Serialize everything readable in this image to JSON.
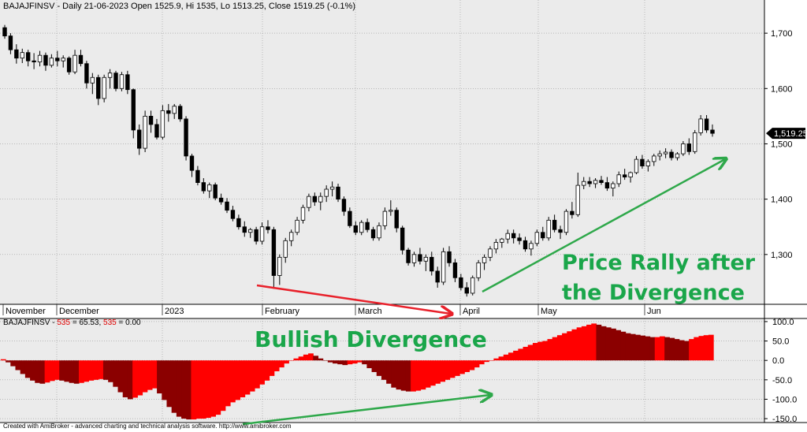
{
  "price_header": "BAJAJFINSV - Daily 21-06-2023 Open 1525.9, Hi 1535, Lo 1513.25, Close 1519.25 (-0.1%)",
  "indicator_header": {
    "prefix": "BAJAJFINSV - ",
    "name1": "535",
    "mid": " = 65.53, ",
    "name2": "535",
    "suffix": " = 0.00"
  },
  "footer": "Created with AmiBroker - advanced charting and technical analysis software. http://www.amibroker.com",
  "annotations": {
    "price_rally_line1": "Price Rally after",
    "price_rally_line2": "the Divergence",
    "bullish_divergence": "Bullish Divergence"
  },
  "colors": {
    "background": "#ebebeb",
    "bull_candle": "#ffffff",
    "bear_candle": "#000000",
    "osc_dark": "#8b0000",
    "osc_bright": "#ff0000",
    "arrow_red": "#e8202a",
    "arrow_green": "#2ea84a",
    "last_price_badge": "#000000"
  },
  "chart_data": [
    {
      "type": "candlestick",
      "symbol": "BAJAJFINSV",
      "x_labels": [
        "November",
        "December",
        "2023",
        "February",
        "March",
        "April",
        "May",
        "Jun"
      ],
      "y_ticks": [
        "1,300",
        "1,400",
        "1,500",
        "1,600",
        "1,700"
      ],
      "ylim": [
        1210,
        1760
      ],
      "last_price_label": "1,519.25",
      "ohlc": [
        [
          1710,
          1715,
          1690,
          1695
        ],
        [
          1695,
          1700,
          1662,
          1670
        ],
        [
          1670,
          1680,
          1645,
          1655
        ],
        [
          1655,
          1672,
          1646,
          1665
        ],
        [
          1665,
          1670,
          1640,
          1650
        ],
        [
          1650,
          1664,
          1635,
          1648
        ],
        [
          1648,
          1668,
          1640,
          1660
        ],
        [
          1660,
          1665,
          1632,
          1642
        ],
        [
          1642,
          1662,
          1638,
          1655
        ],
        [
          1655,
          1668,
          1640,
          1650
        ],
        [
          1650,
          1660,
          1638,
          1655
        ],
        [
          1655,
          1658,
          1625,
          1630
        ],
        [
          1630,
          1670,
          1626,
          1660
        ],
        [
          1660,
          1670,
          1640,
          1645
        ],
        [
          1645,
          1650,
          1600,
          1610
        ],
        [
          1610,
          1628,
          1590,
          1620
        ],
        [
          1620,
          1625,
          1570,
          1582
        ],
        [
          1582,
          1625,
          1575,
          1620
        ],
        [
          1620,
          1635,
          1600,
          1628
        ],
        [
          1628,
          1632,
          1595,
          1600
        ],
        [
          1600,
          1630,
          1595,
          1625
        ],
        [
          1625,
          1632,
          1590,
          1598
        ],
        [
          1598,
          1600,
          1510,
          1525
        ],
        [
          1525,
          1535,
          1480,
          1492
        ],
        [
          1492,
          1560,
          1485,
          1550
        ],
        [
          1550,
          1560,
          1520,
          1535
        ],
        [
          1535,
          1545,
          1508,
          1512
        ],
        [
          1512,
          1570,
          1508,
          1560
        ],
        [
          1560,
          1572,
          1540,
          1555
        ],
        [
          1555,
          1572,
          1545,
          1568
        ],
        [
          1568,
          1572,
          1540,
          1545
        ],
        [
          1545,
          1550,
          1470,
          1478
        ],
        [
          1478,
          1482,
          1440,
          1452
        ],
        [
          1452,
          1460,
          1425,
          1430
        ],
        [
          1430,
          1438,
          1410,
          1415
        ],
        [
          1415,
          1430,
          1402,
          1426
        ],
        [
          1426,
          1430,
          1398,
          1402
        ],
        [
          1402,
          1410,
          1390,
          1395
        ],
        [
          1395,
          1402,
          1375,
          1380
        ],
        [
          1380,
          1388,
          1360,
          1365
        ],
        [
          1365,
          1372,
          1345,
          1350
        ],
        [
          1350,
          1360,
          1332,
          1340
        ],
        [
          1340,
          1348,
          1330,
          1345
        ],
        [
          1345,
          1350,
          1318,
          1324
        ],
        [
          1324,
          1358,
          1318,
          1350
        ],
        [
          1350,
          1362,
          1338,
          1345
        ],
        [
          1345,
          1350,
          1238,
          1262
        ],
        [
          1262,
          1300,
          1245,
          1295
        ],
        [
          1295,
          1330,
          1285,
          1325
        ],
        [
          1325,
          1345,
          1315,
          1340
        ],
        [
          1340,
          1368,
          1335,
          1362
        ],
        [
          1362,
          1390,
          1356,
          1385
        ],
        [
          1385,
          1410,
          1378,
          1405
        ],
        [
          1405,
          1412,
          1388,
          1395
        ],
        [
          1395,
          1412,
          1380,
          1405
        ],
        [
          1405,
          1425,
          1395,
          1418
        ],
        [
          1418,
          1432,
          1405,
          1422
        ],
        [
          1422,
          1428,
          1395,
          1400
        ],
        [
          1400,
          1405,
          1370,
          1378
        ],
        [
          1378,
          1385,
          1348,
          1352
        ],
        [
          1352,
          1360,
          1335,
          1340
        ],
        [
          1340,
          1362,
          1335,
          1358
        ],
        [
          1358,
          1365,
          1340,
          1345
        ],
        [
          1345,
          1350,
          1325,
          1330
        ],
        [
          1330,
          1358,
          1325,
          1352
        ],
        [
          1352,
          1385,
          1345,
          1378
        ],
        [
          1378,
          1398,
          1370,
          1380
        ],
        [
          1380,
          1385,
          1340,
          1348
        ],
        [
          1348,
          1352,
          1300,
          1308
        ],
        [
          1308,
          1312,
          1280,
          1285
        ],
        [
          1285,
          1305,
          1278,
          1300
        ],
        [
          1300,
          1312,
          1282,
          1288
        ],
        [
          1288,
          1300,
          1270,
          1295
        ],
        [
          1295,
          1305,
          1262,
          1270
        ],
        [
          1270,
          1278,
          1240,
          1250
        ],
        [
          1250,
          1312,
          1245,
          1305
        ],
        [
          1305,
          1315,
          1278,
          1285
        ],
        [
          1285,
          1292,
          1250,
          1258
        ],
        [
          1258,
          1265,
          1235,
          1240
        ],
        [
          1240,
          1250,
          1224,
          1230
        ],
        [
          1230,
          1262,
          1226,
          1258
        ],
        [
          1258,
          1290,
          1252,
          1285
        ],
        [
          1285,
          1300,
          1272,
          1295
        ],
        [
          1295,
          1315,
          1288,
          1310
        ],
        [
          1310,
          1328,
          1302,
          1322
        ],
        [
          1322,
          1330,
          1312,
          1328
        ],
        [
          1328,
          1345,
          1320,
          1338
        ],
        [
          1338,
          1345,
          1320,
          1330
        ],
        [
          1330,
          1338,
          1318,
          1325
        ],
        [
          1325,
          1332,
          1305,
          1310
        ],
        [
          1310,
          1325,
          1298,
          1320
        ],
        [
          1320,
          1345,
          1315,
          1340
        ],
        [
          1340,
          1350,
          1325,
          1330
        ],
        [
          1330,
          1368,
          1325,
          1362
        ],
        [
          1362,
          1372,
          1340,
          1345
        ],
        [
          1345,
          1352,
          1328,
          1340
        ],
        [
          1340,
          1382,
          1335,
          1378
        ],
        [
          1378,
          1395,
          1365,
          1372
        ],
        [
          1372,
          1448,
          1368,
          1425
        ],
        [
          1425,
          1440,
          1418,
          1432
        ],
        [
          1432,
          1440,
          1422,
          1428
        ],
        [
          1428,
          1438,
          1420,
          1434
        ],
        [
          1434,
          1442,
          1426,
          1430
        ],
        [
          1430,
          1440,
          1415,
          1420
        ],
        [
          1420,
          1432,
          1405,
          1428
        ],
        [
          1428,
          1450,
          1422,
          1444
        ],
        [
          1444,
          1455,
          1435,
          1440
        ],
        [
          1440,
          1450,
          1430,
          1448
        ],
        [
          1448,
          1478,
          1445,
          1472
        ],
        [
          1472,
          1480,
          1455,
          1460
        ],
        [
          1460,
          1472,
          1450,
          1468
        ],
        [
          1468,
          1482,
          1460,
          1478
        ],
        [
          1478,
          1488,
          1470,
          1482
        ],
        [
          1482,
          1492,
          1474,
          1485
        ],
        [
          1485,
          1490,
          1470,
          1475
        ],
        [
          1475,
          1485,
          1470,
          1482
        ],
        [
          1482,
          1505,
          1478,
          1500
        ],
        [
          1500,
          1510,
          1480,
          1486
        ],
        [
          1486,
          1525,
          1482,
          1520
        ],
        [
          1520,
          1552,
          1515,
          1545
        ],
        [
          1545,
          1552,
          1520,
          1525
        ],
        [
          1525,
          1535,
          1513,
          1519
        ]
      ]
    },
    {
      "type": "area",
      "name": "535",
      "y_ticks": [
        "-150.0",
        "-100.0",
        "-50.0",
        "0.0",
        "50.0",
        "100.0"
      ],
      "ylim": [
        -158,
        108
      ],
      "values": [
        3,
        -5,
        -15,
        -25,
        -35,
        -45,
        -52,
        -58,
        -60,
        -57,
        -53,
        -50,
        -52,
        -55,
        -58,
        -60,
        -58,
        -55,
        -52,
        -50,
        -48,
        -50,
        -56,
        -68,
        -82,
        -95,
        -100,
        -96,
        -90,
        -82,
        -76,
        -72,
        -85,
        -102,
        -120,
        -135,
        -145,
        -150,
        -152,
        -152,
        -150,
        -150,
        -148,
        -145,
        -140,
        -130,
        -118,
        -108,
        -102,
        -95,
        -88,
        -80,
        -72,
        -62,
        -52,
        -40,
        -28,
        -18,
        -8,
        0,
        5,
        10,
        15,
        18,
        12,
        5,
        0,
        -5,
        -8,
        -10,
        -12,
        -10,
        -8,
        -5,
        -10,
        -20,
        -30,
        -40,
        -50,
        -60,
        -70,
        -75,
        -78,
        -80,
        -80,
        -78,
        -75,
        -70,
        -65,
        -60,
        -55,
        -50,
        -45,
        -40,
        -35,
        -30,
        -25,
        -18,
        -10,
        -4,
        0,
        5,
        10,
        15,
        20,
        25,
        30,
        35,
        40,
        45,
        48,
        50,
        55,
        60,
        65,
        70,
        75,
        80,
        85,
        88,
        92,
        95,
        92,
        88,
        85,
        82,
        78,
        74,
        70,
        68,
        66,
        64,
        62,
        60,
        60,
        62,
        60,
        58,
        55,
        52,
        50,
        55,
        60,
        63,
        65,
        66
      ]
    }
  ]
}
